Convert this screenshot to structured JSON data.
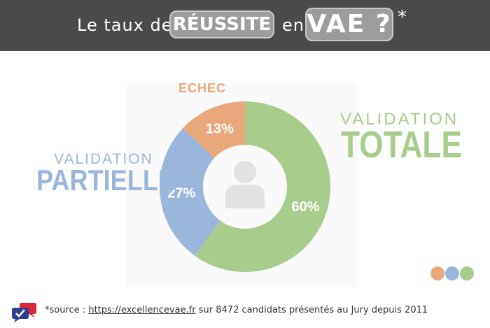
{
  "header": {
    "prefix": "Le taux de",
    "highlight1": "RÉUSSITE",
    "middle": "en",
    "highlight2": "VAE ?",
    "asterisk": "*"
  },
  "labels": {
    "echec": "ECHEC",
    "partielle_small": "VALIDATION",
    "partielle_big": "PARTIELLE",
    "totale_small": "VALIDATION",
    "totale_big": "TOTALE"
  },
  "chart_data": {
    "type": "pie",
    "donut": true,
    "title": "",
    "slices": [
      {
        "label": "VALIDATION TOTALE",
        "value": 60,
        "display": "60%",
        "color": "#a8cc8c"
      },
      {
        "label": "VALIDATION PARTIELLE",
        "value": 27,
        "display": "27%",
        "color": "#9bb6db"
      },
      {
        "label": "ECHEC",
        "value": 13,
        "display": "13%",
        "color": "#e8a87c"
      }
    ],
    "start": "12 o'clock",
    "direction": "clockwise",
    "center_icon": "person-icon"
  },
  "legend_dots": [
    "#e8a87c",
    "#9bb6db",
    "#a8cc8c"
  ],
  "footer": {
    "prefix": "*source :",
    "link": "https://excellencevae.fr",
    "suffix": "sur 8472 candidats présentés au Jury depuis 2011"
  },
  "colors": {
    "header_bg": "#4a4a4a",
    "pill_bg": "#9c9c9c"
  }
}
